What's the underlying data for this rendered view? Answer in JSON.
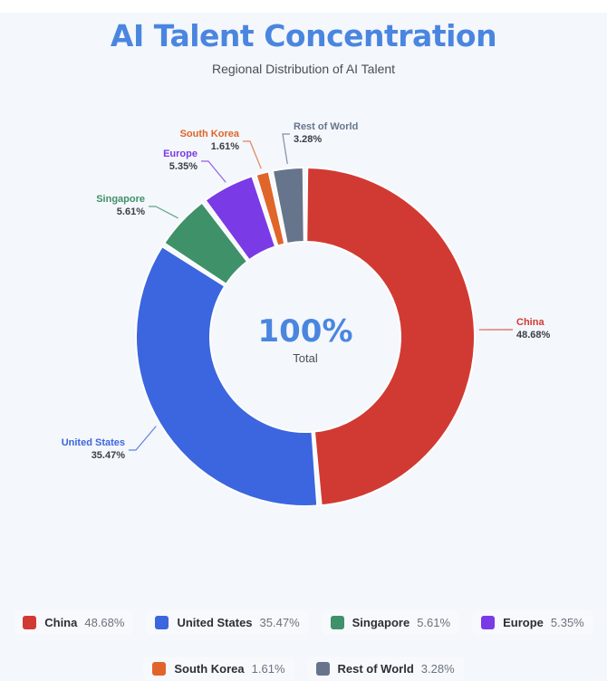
{
  "chart_data": {
    "type": "pie",
    "variant": "donut",
    "title": "AI Talent Concentration",
    "subtitle": "Regional Distribution of AI Talent",
    "center_value": "100%",
    "center_label": "Total",
    "legend_position": "bottom",
    "slices": [
      {
        "name": "China",
        "value": 48.68,
        "label": "48.68%",
        "color": "#d13a32"
      },
      {
        "name": "United States",
        "value": 35.47,
        "label": "35.47%",
        "color": "#3b66e0"
      },
      {
        "name": "Singapore",
        "value": 5.61,
        "label": "5.61%",
        "color": "#3f9169"
      },
      {
        "name": "Europe",
        "value": 5.35,
        "label": "5.35%",
        "color": "#7a3be6"
      },
      {
        "name": "South Korea",
        "value": 1.61,
        "label": "1.61%",
        "color": "#e0652a"
      },
      {
        "name": "Rest of World",
        "value": 3.28,
        "label": "3.28%",
        "color": "#66758c"
      }
    ]
  }
}
